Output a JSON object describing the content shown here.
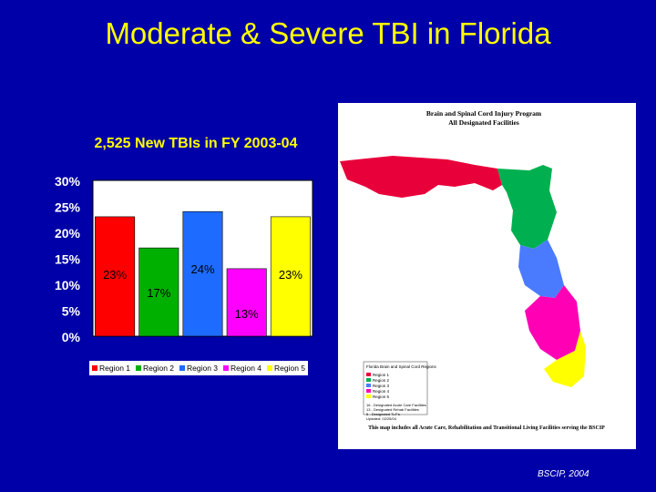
{
  "slide": {
    "title": "Moderate & Severe TBI in Florida",
    "credit": "BSCIP, 2004"
  },
  "chart_data": {
    "type": "bar",
    "title": "2,525 New TBIs in FY 2003-04",
    "categories": [
      "Region 1",
      "Region 2",
      "Region 3",
      "Region 4",
      "Region 5"
    ],
    "values": [
      23,
      17,
      24,
      13,
      23
    ],
    "data_labels": [
      "23%",
      "17%",
      "24%",
      "13%",
      "23%"
    ],
    "colors": [
      "#ff0000",
      "#00b000",
      "#1e6bff",
      "#ff00ff",
      "#ffff00"
    ],
    "ylim": [
      0,
      30
    ],
    "yticks": [
      "0%",
      "5%",
      "10%",
      "15%",
      "20%",
      "25%",
      "30%"
    ],
    "grid": false,
    "legend_placement": "bottom"
  },
  "map": {
    "title": "Brain and Spinal Cord Injury Program",
    "subtitle": "All Designated Facilities",
    "legend_title": "Florida Brain and Spinal Cord Regions",
    "regions": [
      "Region 1",
      "Region 2",
      "Region 3",
      "Region 4",
      "Region 5"
    ],
    "facility_notes": [
      "16 - Designated Acute Care Facilities",
      "13 - Designated Rehab Facilities",
      "5 - Designated TLF's"
    ],
    "updated": "Updated: 02/25/04",
    "footer": "This map includes all Acute Care, Rehabilitation and Transitional Living Facilities serving the BSCIP"
  }
}
